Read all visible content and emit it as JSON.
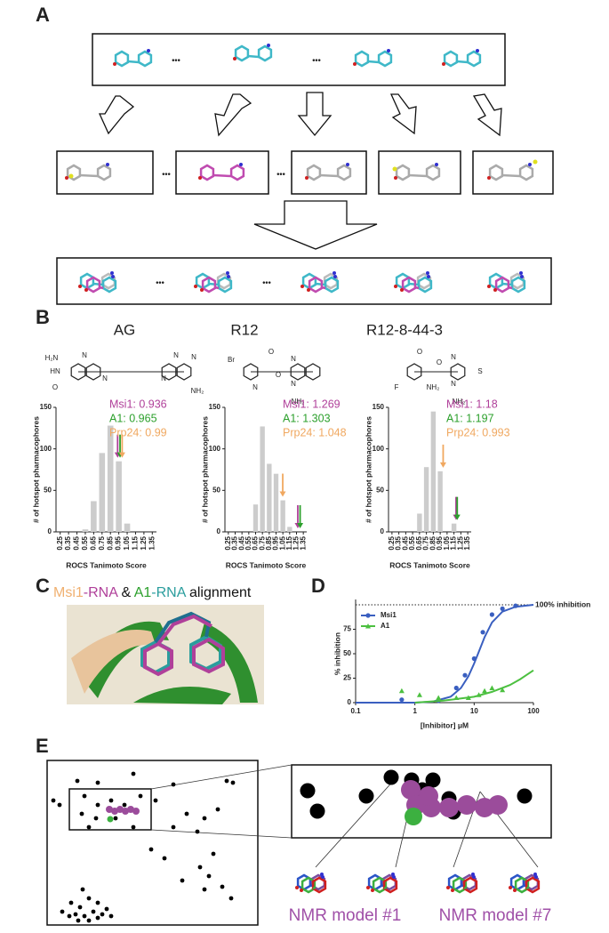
{
  "panels": {
    "a": "A",
    "b": "B",
    "c": "C",
    "d": "D",
    "e": "E"
  },
  "ellipsis": "•••",
  "structures": [
    {
      "labels": [
        "H₂N",
        "HN",
        "N",
        "O",
        "N",
        "N",
        "N",
        "N",
        "NH₂"
      ]
    },
    {
      "labels": [
        "Br",
        "O",
        "O",
        "N",
        "N",
        "N",
        "NH₂"
      ]
    },
    {
      "labels": [
        "F",
        "NH₂",
        "O",
        "O",
        "N",
        "N",
        "S",
        "NH₂"
      ]
    }
  ],
  "alignment_title": [
    {
      "text": "Msi1",
      "color": "#f0b070"
    },
    {
      "text": "-RNA",
      "color": "#b0409a"
    },
    {
      "text": " & ",
      "color": "#111111"
    },
    {
      "text": "A1",
      "color": "#2ca02c"
    },
    {
      "text": "-RNA",
      "color": "#2a9d9d"
    },
    {
      "text": " alignment",
      "color": "#111111"
    }
  ],
  "nmr_labels": [
    "NMR model #1",
    "NMR model #7"
  ],
  "chart_data": [
    {
      "type": "bar",
      "title": "AG",
      "color": "#cccccc",
      "x": [
        0.25,
        0.35,
        0.45,
        0.55,
        0.65,
        0.75,
        0.85,
        0.95,
        1.05,
        1.15,
        1.25,
        1.35
      ],
      "values": [
        0,
        0,
        0,
        3,
        37,
        95,
        128,
        85,
        10,
        0,
        0,
        0
      ],
      "xlim": [
        0.2,
        1.4
      ],
      "xticks": [
        0.25,
        0.35,
        0.45,
        0.55,
        0.65,
        0.75,
        0.85,
        0.95,
        1.05,
        1.15,
        1.25,
        1.35
      ],
      "ylim": [
        0,
        150
      ],
      "yticks": [
        0,
        50,
        100,
        150
      ],
      "xlabel": "ROCS Tanimoto Score",
      "ylabel": "# of hotspot pharmacophores",
      "annotations": [
        {
          "value": 0.936,
          "label": "Msi1: 0.936",
          "color": "#b0409a"
        },
        {
          "value": 0.965,
          "label": "A1: 0.965",
          "color": "#2ca02c"
        },
        {
          "value": 0.99,
          "label": "Prp24: 0.99",
          "color": "#f0a860"
        }
      ]
    },
    {
      "type": "bar",
      "title": "R12",
      "color": "#cccccc",
      "x": [
        0.25,
        0.35,
        0.45,
        0.55,
        0.65,
        0.75,
        0.85,
        0.95,
        1.05,
        1.15,
        1.25,
        1.35
      ],
      "values": [
        0,
        0,
        0,
        0,
        33,
        127,
        82,
        70,
        38,
        6,
        0,
        0
      ],
      "xlim": [
        0.2,
        1.4
      ],
      "xticks": [
        0.25,
        0.35,
        0.45,
        0.55,
        0.65,
        0.75,
        0.85,
        0.95,
        1.05,
        1.15,
        1.25,
        1.35
      ],
      "ylim": [
        0,
        150
      ],
      "yticks": [
        0,
        50,
        100,
        150
      ],
      "xlabel": "ROCS Tanimoto Score",
      "ylabel": "# of hotspot pharmacophores",
      "annotations": [
        {
          "value": 1.269,
          "label": "Msi1: 1.269",
          "color": "#b0409a"
        },
        {
          "value": 1.303,
          "label": "A1: 1.303",
          "color": "#2ca02c"
        },
        {
          "value": 1.048,
          "label": "Prp24: 1.048",
          "color": "#f0a860"
        }
      ]
    },
    {
      "type": "bar",
      "title": "R12-8-44-3",
      "color": "#cccccc",
      "x": [
        0.25,
        0.35,
        0.45,
        0.55,
        0.65,
        0.75,
        0.85,
        0.95,
        1.05,
        1.15,
        1.25,
        1.35
      ],
      "values": [
        0,
        0,
        0,
        0,
        22,
        78,
        145,
        73,
        0,
        10,
        0,
        0
      ],
      "xlim": [
        0.2,
        1.4
      ],
      "xticks": [
        0.25,
        0.35,
        0.45,
        0.55,
        0.65,
        0.75,
        0.85,
        0.95,
        1.05,
        1.15,
        1.25,
        1.35
      ],
      "ylim": [
        0,
        150
      ],
      "yticks": [
        0,
        50,
        100,
        150
      ],
      "xlabel": "ROCS Tanimoto Score",
      "ylabel": "# of hotspot pharmacophores",
      "annotations": [
        {
          "value": 1.18,
          "label": "Msi1: 1.18",
          "color": "#b0409a"
        },
        {
          "value": 1.197,
          "label": "A1: 1.197",
          "color": "#2ca02c"
        },
        {
          "value": 0.993,
          "label": "Prp24: 0.993",
          "color": "#f0a860"
        }
      ]
    },
    {
      "type": "scatter",
      "log_x": true,
      "xlim": [
        0.1,
        100
      ],
      "xticks": [
        0.1,
        1,
        10,
        100
      ],
      "ylim": [
        0,
        100
      ],
      "yticks": [
        0,
        25,
        50,
        75
      ],
      "xlabel": "[Inhibitor] μM",
      "ylabel": "% inhibition",
      "reference": {
        "value": 100,
        "label": "100% inhibition"
      },
      "series": [
        {
          "name": "Msi1",
          "color": "#3a5fc0",
          "x": [
            0.6,
            2.5,
            5,
            7,
            10,
            14,
            20,
            30,
            50
          ],
          "values": [
            3,
            2,
            15,
            28,
            45,
            72,
            90,
            96,
            99
          ],
          "fit_x": [
            0.1,
            1,
            2,
            4,
            6,
            8,
            10,
            12,
            15,
            20,
            30,
            50,
            100
          ],
          "fit_values": [
            0,
            0,
            1,
            6,
            15,
            27,
            40,
            52,
            67,
            82,
            93,
            98,
            100
          ]
        },
        {
          "name": "A1",
          "color": "#4cc040",
          "x": [
            0.6,
            1.2,
            2.5,
            5,
            8,
            12,
            15,
            20,
            30
          ],
          "values": [
            12,
            8,
            5,
            5,
            5,
            8,
            12,
            15,
            13
          ],
          "fit_x": [
            1,
            3,
            10,
            20,
            40,
            60,
            100
          ],
          "fit_values": [
            0,
            2,
            6,
            11,
            18,
            24,
            33
          ]
        }
      ]
    }
  ]
}
